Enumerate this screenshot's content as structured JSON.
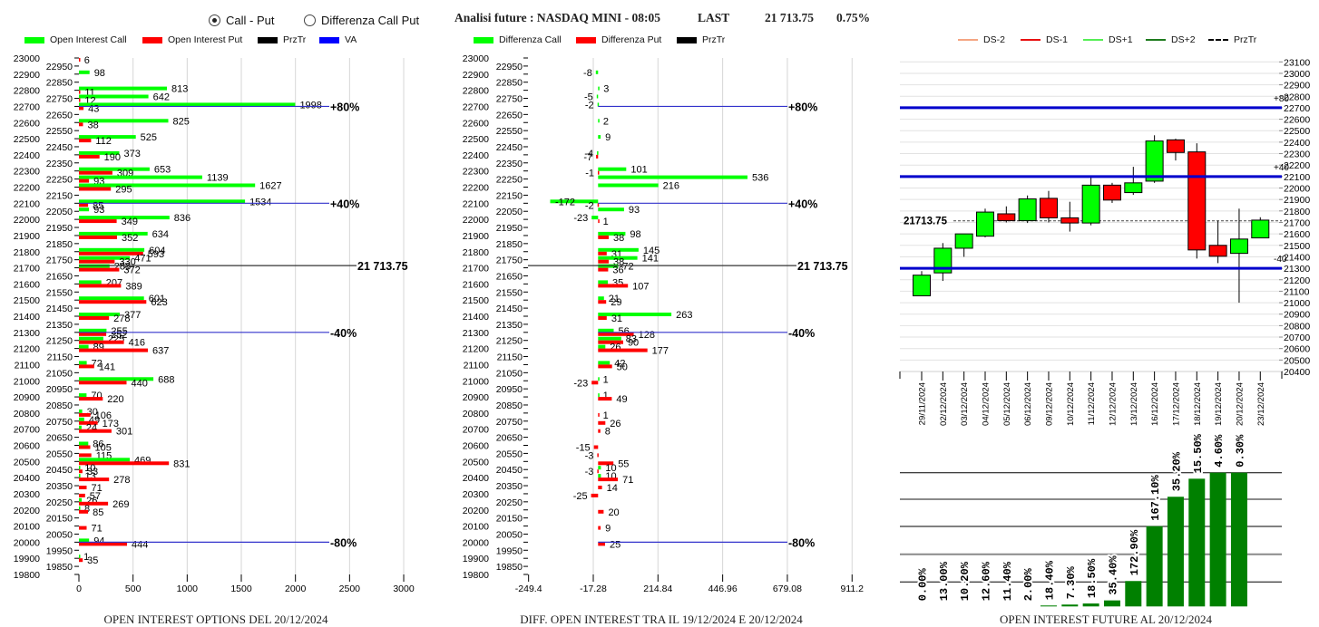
{
  "header": {
    "view_options": [
      {
        "label": "Call - Put",
        "selected": true
      },
      {
        "label": "Differenza Call Put",
        "selected": false
      }
    ],
    "title": "Analisi future : NASDAQ MINI - 08:05",
    "last_label": "LAST",
    "last_value": "21 713.75",
    "change_pct": "0.75%"
  },
  "legends": {
    "options_oi": [
      {
        "label": "Open Interest Call",
        "color": "#00ff00"
      },
      {
        "label": "Open Interest Put",
        "color": "#ff0000"
      },
      {
        "label": "PrzTr",
        "color": "#000000"
      },
      {
        "label": "VA",
        "color": "#0000ff"
      }
    ],
    "diff_oi": [
      {
        "label": "Differenza Call",
        "color": "#00ff00"
      },
      {
        "label": "Differenza Put",
        "color": "#ff0000"
      },
      {
        "label": "PrzTr",
        "color": "#000000"
      }
    ],
    "future": [
      {
        "label": "DS-2",
        "color": "#f4a582"
      },
      {
        "label": "DS-1",
        "color": "#e81010"
      },
      {
        "label": "DS+1",
        "color": "#55ee55"
      },
      {
        "label": "DS+2",
        "color": "#1e7b1e"
      },
      {
        "label": "PrzTr",
        "color": "#000000"
      }
    ]
  },
  "chart_data": [
    {
      "type": "bar",
      "orientation": "horizontal",
      "title": "OPEN INTEREST OPTIONS DEL 20/12/2024",
      "xlabel": "",
      "ylabel": "Strike",
      "xlim": [
        0,
        3000
      ],
      "xticks": [
        0,
        500,
        1000,
        1500,
        2000,
        2500,
        3000
      ],
      "xtick_labels": [
        "0",
        "500",
        "1000",
        "1500",
        "2000",
        "2500",
        "3000"
      ],
      "ylim": [
        19800,
        23000
      ],
      "yticks": [
        23000,
        22950,
        22900,
        22850,
        22800,
        22750,
        22700,
        22650,
        22600,
        22550,
        22500,
        22450,
        22400,
        22350,
        22300,
        22250,
        22200,
        22150,
        22100,
        22050,
        22000,
        21950,
        21900,
        21850,
        21800,
        21750,
        21700,
        21650,
        21600,
        21550,
        21500,
        21450,
        21400,
        21350,
        21300,
        21250,
        21200,
        21150,
        21100,
        21050,
        21000,
        20950,
        20900,
        20850,
        20800,
        20750,
        20700,
        20650,
        20600,
        20550,
        20500,
        20450,
        20400,
        20350,
        20300,
        20250,
        20200,
        20150,
        20100,
        20050,
        20000,
        19950,
        19900,
        19850,
        19800
      ],
      "grid": "vertical",
      "categories": [
        23000,
        22900,
        22800,
        22750,
        22700,
        22600,
        22500,
        22400,
        22300,
        22250,
        22200,
        22100,
        22050,
        22000,
        21900,
        21800,
        21750,
        21700,
        21600,
        21500,
        21400,
        21300,
        21250,
        21200,
        21100,
        21000,
        20900,
        20800,
        20750,
        20700,
        20600,
        20550,
        20500,
        20450,
        20400,
        20350,
        20300,
        20250,
        20200,
        20100,
        20000,
        19900
      ],
      "series": [
        {
          "name": "Open Interest Call",
          "color": "#00ff00",
          "values": [
            null,
            98,
            813,
            642,
            1998,
            825,
            525,
            373,
            653,
            1139,
            1627,
            1534,
            93,
            836,
            634,
            604,
            471,
            283,
            207,
            601,
            377,
            255,
            225,
            89,
            72,
            688,
            70,
            30,
            49,
            24,
            86,
            null,
            469,
            10,
            13,
            null,
            null,
            26,
            8,
            null,
            94,
            1
          ]
        },
        {
          "name": "Open Interest Put",
          "color": "#ff0000",
          "values": [
            6,
            null,
            11,
            12,
            43,
            38,
            112,
            190,
            309,
            93,
            295,
            85,
            null,
            349,
            352,
            593,
            330,
            372,
            389,
            623,
            278,
            252,
            416,
            637,
            141,
            440,
            220,
            106,
            173,
            301,
            105,
            115,
            831,
            33,
            278,
            71,
            57,
            269,
            85,
            71,
            444,
            35
          ]
        }
      ],
      "reference_lines": [
        {
          "label": "+80%",
          "value": 22700,
          "color": "#3333cc"
        },
        {
          "label": "+40%",
          "value": 22100,
          "color": "#3333cc"
        },
        {
          "label": "-40%",
          "value": 21300,
          "color": "#3333cc"
        },
        {
          "label": "-80%",
          "value": 20000,
          "color": "#3333cc"
        }
      ],
      "price_line": {
        "label": "21 713.75",
        "value": 21713.75,
        "color": "#333333"
      }
    },
    {
      "type": "bar",
      "orientation": "horizontal",
      "title": "DIFF. OPEN INTEREST TRA IL 19/12/2024 E 20/12/2024",
      "xlabel": "",
      "ylabel": "Strike",
      "xlim": [
        -249.4,
        911.2
      ],
      "xticks": [
        -249.4,
        -17.28,
        214.84,
        446.96,
        679.08,
        911.2
      ],
      "xtick_labels": [
        "-249.4",
        "-17.28",
        "214.84",
        "446.96",
        "679.08",
        "911.2"
      ],
      "ylim": [
        19800,
        23000
      ],
      "yticks": [
        23000,
        22950,
        22900,
        22850,
        22800,
        22750,
        22700,
        22650,
        22600,
        22550,
        22500,
        22450,
        22400,
        22350,
        22300,
        22250,
        22200,
        22150,
        22100,
        22050,
        22000,
        21950,
        21900,
        21850,
        21800,
        21750,
        21700,
        21650,
        21600,
        21550,
        21500,
        21450,
        21400,
        21350,
        21300,
        21250,
        21200,
        21150,
        21100,
        21050,
        21000,
        20950,
        20900,
        20850,
        20800,
        20750,
        20700,
        20650,
        20600,
        20550,
        20500,
        20450,
        20400,
        20350,
        20300,
        20250,
        20200,
        20150,
        20100,
        20050,
        20000,
        19950,
        19900,
        19850,
        19800
      ],
      "grid": "vertical",
      "categories": [
        22900,
        22800,
        22750,
        22700,
        22600,
        22500,
        22400,
        22300,
        22250,
        22200,
        22100,
        22050,
        22000,
        21900,
        21800,
        21750,
        21700,
        21600,
        21500,
        21400,
        21300,
        21250,
        21200,
        21100,
        21000,
        20900,
        20800,
        20750,
        20700,
        20600,
        20550,
        20500,
        20450,
        20400,
        20350,
        20300,
        20200,
        20100,
        20000
      ],
      "series": [
        {
          "name": "Differenza Call",
          "color": "#00ff00",
          "values": [
            -8,
            3,
            -5,
            -2,
            2,
            9,
            -4,
            101,
            536,
            216,
            -172,
            93,
            -23,
            98,
            145,
            141,
            72,
            35,
            21,
            263,
            56,
            83,
            26,
            42,
            1,
            1,
            null,
            null,
            null,
            null,
            null,
            null,
            10,
            10,
            null,
            null,
            null,
            null,
            null
          ]
        },
        {
          "name": "Differenza Put",
          "color": "#ff0000",
          "values": [
            null,
            null,
            null,
            null,
            null,
            null,
            -7,
            -1,
            null,
            null,
            -2,
            null,
            1,
            38,
            31,
            38,
            36,
            107,
            29,
            31,
            128,
            90,
            177,
            50,
            -23,
            49,
            1,
            26,
            8,
            -15,
            -3,
            55,
            -3,
            71,
            14,
            -25,
            20,
            9,
            25
          ]
        }
      ],
      "reference_lines": [
        {
          "label": "+80%",
          "value": 22700,
          "color": "#3333cc"
        },
        {
          "label": "+40%",
          "value": 22100,
          "color": "#3333cc"
        },
        {
          "label": "-40%",
          "value": 21300,
          "color": "#3333cc"
        },
        {
          "label": "-80%",
          "value": 20000,
          "color": "#3333cc"
        }
      ],
      "price_line": {
        "label": "21 713.75",
        "value": 21713.75,
        "color": "#333333"
      }
    },
    {
      "type": "candlestick",
      "title": "",
      "ylim": [
        20400,
        23100
      ],
      "yticks": [
        23100,
        23000,
        22900,
        22800,
        22700,
        22600,
        22500,
        22400,
        22300,
        22200,
        22100,
        22000,
        21900,
        21800,
        21700,
        21600,
        21500,
        21400,
        21300,
        21200,
        21100,
        21000,
        20900,
        20800,
        20700,
        20600,
        20500,
        20400
      ],
      "grid": "horizontal",
      "up_color": "#00ff00",
      "down_color": "#ff0000",
      "categories": [
        "29/11/2024",
        "02/12/2024",
        "03/12/2024",
        "04/12/2024",
        "05/12/2024",
        "06/12/2024",
        "09/12/2024",
        "10/12/2024",
        "11/12/2024",
        "12/12/2024",
        "13/12/2024",
        "16/12/2024",
        "17/12/2024",
        "18/12/2024",
        "19/12/2024",
        "20/12/2024",
        "23/12/2024"
      ],
      "ohlc_fields": [
        "open",
        "high",
        "low",
        "close"
      ],
      "ohlc": [
        [
          21060,
          21275,
          21060,
          21240
        ],
        [
          21260,
          21520,
          21190,
          21475
        ],
        [
          21475,
          21600,
          21400,
          21600
        ],
        [
          21580,
          21820,
          21570,
          21790
        ],
        [
          21775,
          21840,
          21700,
          21715
        ],
        [
          21715,
          21935,
          21695,
          21905
        ],
        [
          21910,
          21975,
          21700,
          21740
        ],
        [
          21740,
          21880,
          21620,
          21695
        ],
        [
          21695,
          22095,
          21675,
          22025
        ],
        [
          22025,
          22045,
          21870,
          21895
        ],
        [
          21960,
          22185,
          21940,
          22045
        ],
        [
          22060,
          22460,
          22045,
          22410
        ],
        [
          22420,
          22430,
          22240,
          22310
        ],
        [
          22315,
          22390,
          21385,
          21460
        ],
        [
          21500,
          21715,
          21345,
          21405
        ],
        [
          21430,
          21820,
          21000,
          21555
        ],
        [
          21565,
          21745,
          21565,
          21720
        ]
      ],
      "reference_lines": [
        {
          "label": "+80",
          "value": 22700,
          "color": "#0000cc"
        },
        {
          "label": "+40",
          "value": 22100,
          "color": "#0000cc"
        },
        {
          "label": "-40",
          "value": 21300,
          "color": "#0000cc"
        }
      ],
      "price_line": {
        "label": "21713.75",
        "value": 21713.75,
        "color": "#444444"
      }
    },
    {
      "type": "bar",
      "title": "OPEN INTEREST FUTURE AL 20/12/2024",
      "color": "#008000",
      "value_unit": "relative open interest (fraction of axis maximum)",
      "ylim": [
        0,
        1
      ],
      "values": [
        0,
        0,
        0,
        0,
        0,
        0,
        0.007,
        0.014,
        0.022,
        0.045,
        0.19,
        0.6,
        0.82,
        0.955,
        1.0,
        1.0
      ],
      "labels": [
        "0.00%",
        "13.00%",
        "10.20%",
        "12.60%",
        "11.40%",
        "2.00%",
        "18.40%",
        "7.30%",
        "18.50%",
        "35.40%",
        "172.90%",
        "167.10%",
        "35.20%",
        "15.50%",
        "4.60%",
        "0.30%"
      ]
    }
  ]
}
